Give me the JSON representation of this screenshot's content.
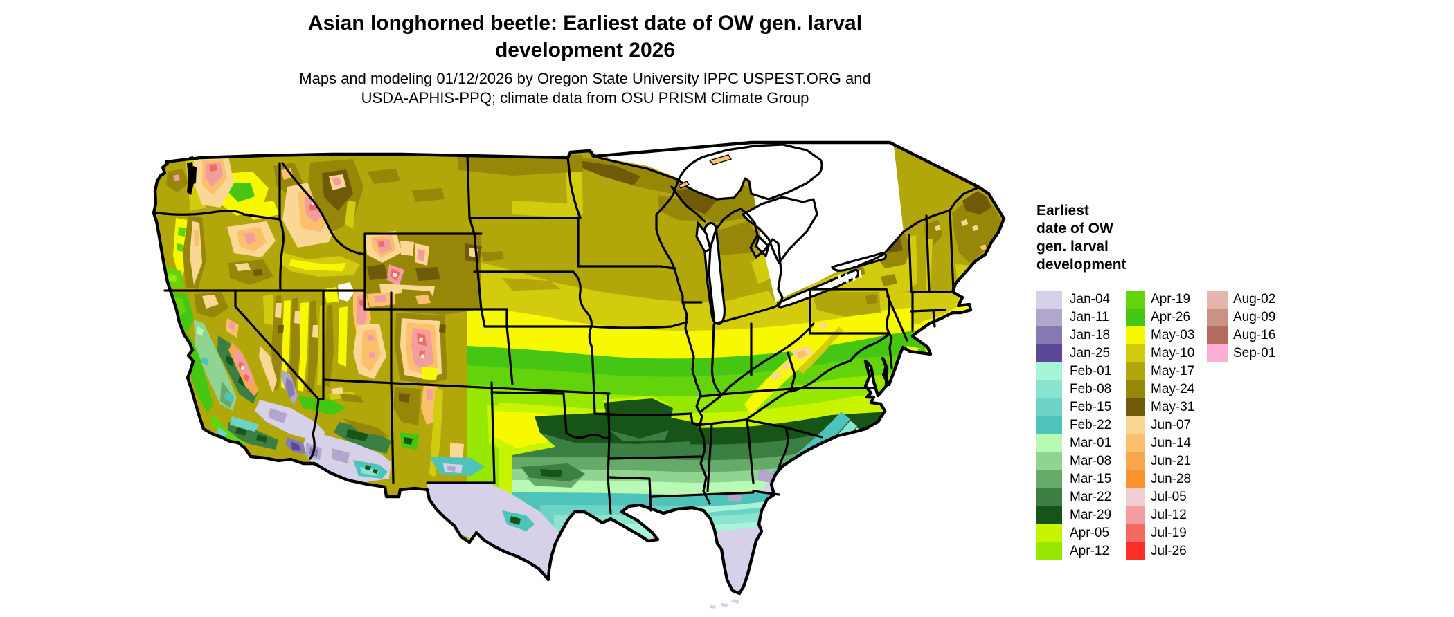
{
  "title": {
    "line1": "Asian longhorned beetle: Earliest date of OW gen. larval",
    "line2": "development 2026"
  },
  "subtitle": {
    "line1": "Maps and modeling 01/12/2026 by Oregon State University IPPC USPEST.ORG and",
    "line2": "USDA-APHIS-PPQ; climate data from OSU PRISM Climate Group"
  },
  "legend": {
    "title_lines": [
      "Earliest",
      "date of OW",
      "gen. larval",
      "development"
    ],
    "columns": [
      {
        "swatch_width": 37,
        "label_gap": 11,
        "entries": [
          {
            "label": "Jan-04",
            "color": "#d6d0e8"
          },
          {
            "label": "Jan-11",
            "color": "#b1a7cd"
          },
          {
            "label": "Jan-18",
            "color": "#8679b4"
          },
          {
            "label": "Jan-25",
            "color": "#5c4796"
          },
          {
            "label": "Feb-01",
            "color": "#a8f4d8"
          },
          {
            "label": "Feb-08",
            "color": "#8be4cf"
          },
          {
            "label": "Feb-15",
            "color": "#6ed3c7"
          },
          {
            "label": "Feb-22",
            "color": "#4ec3b9"
          },
          {
            "label": "Mar-01",
            "color": "#b8fab4"
          },
          {
            "label": "Mar-08",
            "color": "#90d492"
          },
          {
            "label": "Mar-15",
            "color": "#66aa6a"
          },
          {
            "label": "Mar-22",
            "color": "#3b7f43"
          },
          {
            "label": "Mar-29",
            "color": "#175418"
          },
          {
            "label": "Apr-05",
            "color": "#c8f400"
          },
          {
            "label": "Apr-12",
            "color": "#97e800"
          }
        ]
      },
      {
        "swatch_width": 28,
        "label_gap": 8,
        "entries": [
          {
            "label": "Apr-19",
            "color": "#63d40b"
          },
          {
            "label": "Apr-26",
            "color": "#45c613"
          },
          {
            "label": "May-03",
            "color": "#f8f800"
          },
          {
            "label": "May-10",
            "color": "#d3cc0e"
          },
          {
            "label": "May-17",
            "color": "#b2a70a"
          },
          {
            "label": "May-24",
            "color": "#968708"
          },
          {
            "label": "May-31",
            "color": "#6e5a09"
          },
          {
            "label": "Jun-07",
            "color": "#fad795"
          },
          {
            "label": "Jun-14",
            "color": "#fbbf6d"
          },
          {
            "label": "Jun-21",
            "color": "#faa64f"
          },
          {
            "label": "Jun-28",
            "color": "#f99330"
          },
          {
            "label": "Jul-05",
            "color": "#f2cfd2"
          },
          {
            "label": "Jul-12",
            "color": "#f29e9e"
          },
          {
            "label": "Jul-19",
            "color": "#f46a60"
          },
          {
            "label": "Jul-26",
            "color": "#fa2d27"
          }
        ]
      },
      {
        "swatch_width": 30,
        "label_gap": 8,
        "entries": [
          {
            "label": "Aug-02",
            "color": "#e3b5ac"
          },
          {
            "label": "Aug-09",
            "color": "#cb9184"
          },
          {
            "label": "Aug-16",
            "color": "#b26b5d"
          },
          {
            "label": "Sep-01",
            "color": "#fdaed7"
          }
        ]
      }
    ]
  }
}
